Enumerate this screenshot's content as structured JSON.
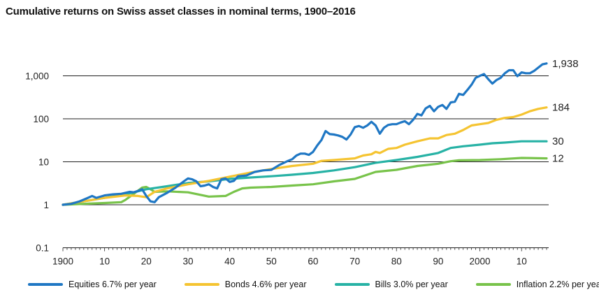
{
  "title": "Cumulative returns on Swiss asset classes in nominal terms, 1900–2016",
  "chart_data": {
    "type": "line",
    "yscale": "log",
    "ylim": [
      0.1,
      2500
    ],
    "yticks": [
      {
        "value": 0.1,
        "label": "0.1"
      },
      {
        "value": 1,
        "label": "1"
      },
      {
        "value": 10,
        "label": "10"
      },
      {
        "value": 100,
        "label": "100"
      },
      {
        "value": 1000,
        "label": "1,000"
      }
    ],
    "xlim": [
      1900,
      2016
    ],
    "xticks": [
      {
        "value": 1900,
        "label": "1900"
      },
      {
        "value": 1910,
        "label": "10"
      },
      {
        "value": 1920,
        "label": "20"
      },
      {
        "value": 1930,
        "label": "30"
      },
      {
        "value": 1940,
        "label": "40"
      },
      {
        "value": 1950,
        "label": "50"
      },
      {
        "value": 1960,
        "label": "60"
      },
      {
        "value": 1970,
        "label": "70"
      },
      {
        "value": 1980,
        "label": "80"
      },
      {
        "value": 1990,
        "label": "90"
      },
      {
        "value": 2000,
        "label": "2000"
      },
      {
        "value": 2010,
        "label": "10"
      }
    ],
    "gridlines": "horizontal",
    "legend_position": "bottom",
    "series": [
      {
        "name": "Equities",
        "legend_label": "Equities  6.7% per year",
        "color": "#1f77c4",
        "end_label": "1,938",
        "points": [
          [
            1900,
            1
          ],
          [
            1902,
            1.05
          ],
          [
            1904,
            1.2
          ],
          [
            1906,
            1.45
          ],
          [
            1907,
            1.6
          ],
          [
            1908,
            1.45
          ],
          [
            1910,
            1.65
          ],
          [
            1912,
            1.75
          ],
          [
            1914,
            1.8
          ],
          [
            1916,
            2.0
          ],
          [
            1917,
            1.95
          ],
          [
            1918,
            2.1
          ],
          [
            1919,
            2.3
          ],
          [
            1920,
            1.6
          ],
          [
            1921,
            1.2
          ],
          [
            1922,
            1.15
          ],
          [
            1923,
            1.5
          ],
          [
            1925,
            1.9
          ],
          [
            1927,
            2.5
          ],
          [
            1929,
            3.5
          ],
          [
            1930,
            4.1
          ],
          [
            1931,
            3.9
          ],
          [
            1932,
            3.5
          ],
          [
            1933,
            2.7
          ],
          [
            1934,
            2.8
          ],
          [
            1935,
            3.0
          ],
          [
            1936,
            2.6
          ],
          [
            1937,
            2.4
          ],
          [
            1938,
            3.9
          ],
          [
            1939,
            4.1
          ],
          [
            1940,
            3.4
          ],
          [
            1941,
            3.6
          ],
          [
            1942,
            4.6
          ],
          [
            1944,
            4.8
          ],
          [
            1946,
            5.8
          ],
          [
            1948,
            6.3
          ],
          [
            1950,
            6.5
          ],
          [
            1952,
            8.5
          ],
          [
            1954,
            10.5
          ],
          [
            1955,
            11.5
          ],
          [
            1956,
            14
          ],
          [
            1957,
            15.5
          ],
          [
            1958,
            15.5
          ],
          [
            1959,
            14.5
          ],
          [
            1960,
            17
          ],
          [
            1961,
            24
          ],
          [
            1962,
            32
          ],
          [
            1963,
            52
          ],
          [
            1964,
            44
          ],
          [
            1965,
            43
          ],
          [
            1966,
            41
          ],
          [
            1967,
            38
          ],
          [
            1968,
            33
          ],
          [
            1969,
            43
          ],
          [
            1970,
            64
          ],
          [
            1971,
            68
          ],
          [
            1972,
            62
          ],
          [
            1973,
            70
          ],
          [
            1974,
            85
          ],
          [
            1975,
            70
          ],
          [
            1976,
            45
          ],
          [
            1977,
            62
          ],
          [
            1978,
            72
          ],
          [
            1979,
            75
          ],
          [
            1980,
            75
          ],
          [
            1981,
            82
          ],
          [
            1982,
            88
          ],
          [
            1983,
            75
          ],
          [
            1984,
            95
          ],
          [
            1985,
            130
          ],
          [
            1986,
            120
          ],
          [
            1987,
            175
          ],
          [
            1988,
            200
          ],
          [
            1989,
            150
          ],
          [
            1990,
            190
          ],
          [
            1991,
            210
          ],
          [
            1992,
            170
          ],
          [
            1993,
            240
          ],
          [
            1994,
            250
          ],
          [
            1995,
            380
          ],
          [
            1996,
            360
          ],
          [
            1997,
            470
          ],
          [
            1998,
            620
          ],
          [
            1999,
            900
          ],
          [
            2000,
            1000
          ],
          [
            2001,
            1100
          ],
          [
            2002,
            840
          ],
          [
            2003,
            660
          ],
          [
            2004,
            800
          ],
          [
            2005,
            900
          ],
          [
            2006,
            1150
          ],
          [
            2007,
            1350
          ],
          [
            2008,
            1350
          ],
          [
            2009,
            980
          ],
          [
            2010,
            1200
          ],
          [
            2011,
            1150
          ],
          [
            2012,
            1150
          ],
          [
            2013,
            1300
          ],
          [
            2014,
            1550
          ],
          [
            2015,
            1850
          ],
          [
            2016,
            1938
          ]
        ]
      },
      {
        "name": "Bonds",
        "legend_label": "Bonds  4.6% per year",
        "color": "#f5c431",
        "end_label": "184",
        "points": [
          [
            1900,
            1
          ],
          [
            1905,
            1.2
          ],
          [
            1910,
            1.45
          ],
          [
            1915,
            1.65
          ],
          [
            1918,
            1.6
          ],
          [
            1920,
            1.5
          ],
          [
            1922,
            2.0
          ],
          [
            1925,
            2.4
          ],
          [
            1930,
            3.0
          ],
          [
            1935,
            3.6
          ],
          [
            1940,
            4.5
          ],
          [
            1945,
            5.6
          ],
          [
            1950,
            6.8
          ],
          [
            1955,
            8.0
          ],
          [
            1960,
            9.0
          ],
          [
            1962,
            10.5
          ],
          [
            1965,
            11
          ],
          [
            1970,
            12
          ],
          [
            1972,
            14
          ],
          [
            1974,
            15
          ],
          [
            1975,
            17
          ],
          [
            1976,
            16
          ],
          [
            1978,
            20
          ],
          [
            1980,
            21
          ],
          [
            1982,
            25
          ],
          [
            1985,
            30
          ],
          [
            1988,
            35
          ],
          [
            1990,
            35
          ],
          [
            1992,
            42
          ],
          [
            1994,
            45
          ],
          [
            1996,
            55
          ],
          [
            1998,
            70
          ],
          [
            2000,
            75
          ],
          [
            2002,
            80
          ],
          [
            2004,
            95
          ],
          [
            2006,
            105
          ],
          [
            2008,
            110
          ],
          [
            2010,
            125
          ],
          [
            2012,
            150
          ],
          [
            2014,
            170
          ],
          [
            2016,
            184
          ]
        ]
      },
      {
        "name": "Bills",
        "legend_label": "Bills  3.0% per year",
        "color": "#27b2a5",
        "end_label": "30",
        "points": [
          [
            1900,
            1
          ],
          [
            1905,
            1.2
          ],
          [
            1910,
            1.45
          ],
          [
            1915,
            1.75
          ],
          [
            1920,
            2.3
          ],
          [
            1925,
            2.7
          ],
          [
            1930,
            3.2
          ],
          [
            1935,
            3.5
          ],
          [
            1940,
            4.0
          ],
          [
            1945,
            4.3
          ],
          [
            1950,
            4.6
          ],
          [
            1955,
            5.0
          ],
          [
            1960,
            5.5
          ],
          [
            1965,
            6.3
          ],
          [
            1970,
            7.5
          ],
          [
            1975,
            9.5
          ],
          [
            1980,
            11
          ],
          [
            1985,
            13
          ],
          [
            1990,
            16
          ],
          [
            1993,
            21
          ],
          [
            1996,
            23
          ],
          [
            2000,
            25
          ],
          [
            2003,
            27
          ],
          [
            2006,
            28
          ],
          [
            2010,
            30
          ],
          [
            2016,
            30
          ]
        ]
      },
      {
        "name": "Inflation",
        "legend_label": "Inflation  2.2% per year",
        "color": "#78c34a",
        "end_label": "12",
        "points": [
          [
            1900,
            1
          ],
          [
            1905,
            1.05
          ],
          [
            1910,
            1.1
          ],
          [
            1914,
            1.15
          ],
          [
            1915,
            1.3
          ],
          [
            1917,
            1.8
          ],
          [
            1919,
            2.5
          ],
          [
            1920,
            2.6
          ],
          [
            1921,
            2.3
          ],
          [
            1922,
            2.0
          ],
          [
            1925,
            2.05
          ],
          [
            1930,
            1.95
          ],
          [
            1935,
            1.55
          ],
          [
            1939,
            1.6
          ],
          [
            1941,
            2.0
          ],
          [
            1943,
            2.4
          ],
          [
            1945,
            2.5
          ],
          [
            1950,
            2.6
          ],
          [
            1955,
            2.8
          ],
          [
            1960,
            3.0
          ],
          [
            1965,
            3.5
          ],
          [
            1970,
            4.0
          ],
          [
            1973,
            5.0
          ],
          [
            1975,
            5.8
          ],
          [
            1980,
            6.5
          ],
          [
            1985,
            8.0
          ],
          [
            1990,
            9.0
          ],
          [
            1993,
            10.3
          ],
          [
            1995,
            10.8
          ],
          [
            2000,
            11
          ],
          [
            2005,
            11.5
          ],
          [
            2010,
            12.3
          ],
          [
            2016,
            12
          ]
        ]
      }
    ]
  }
}
